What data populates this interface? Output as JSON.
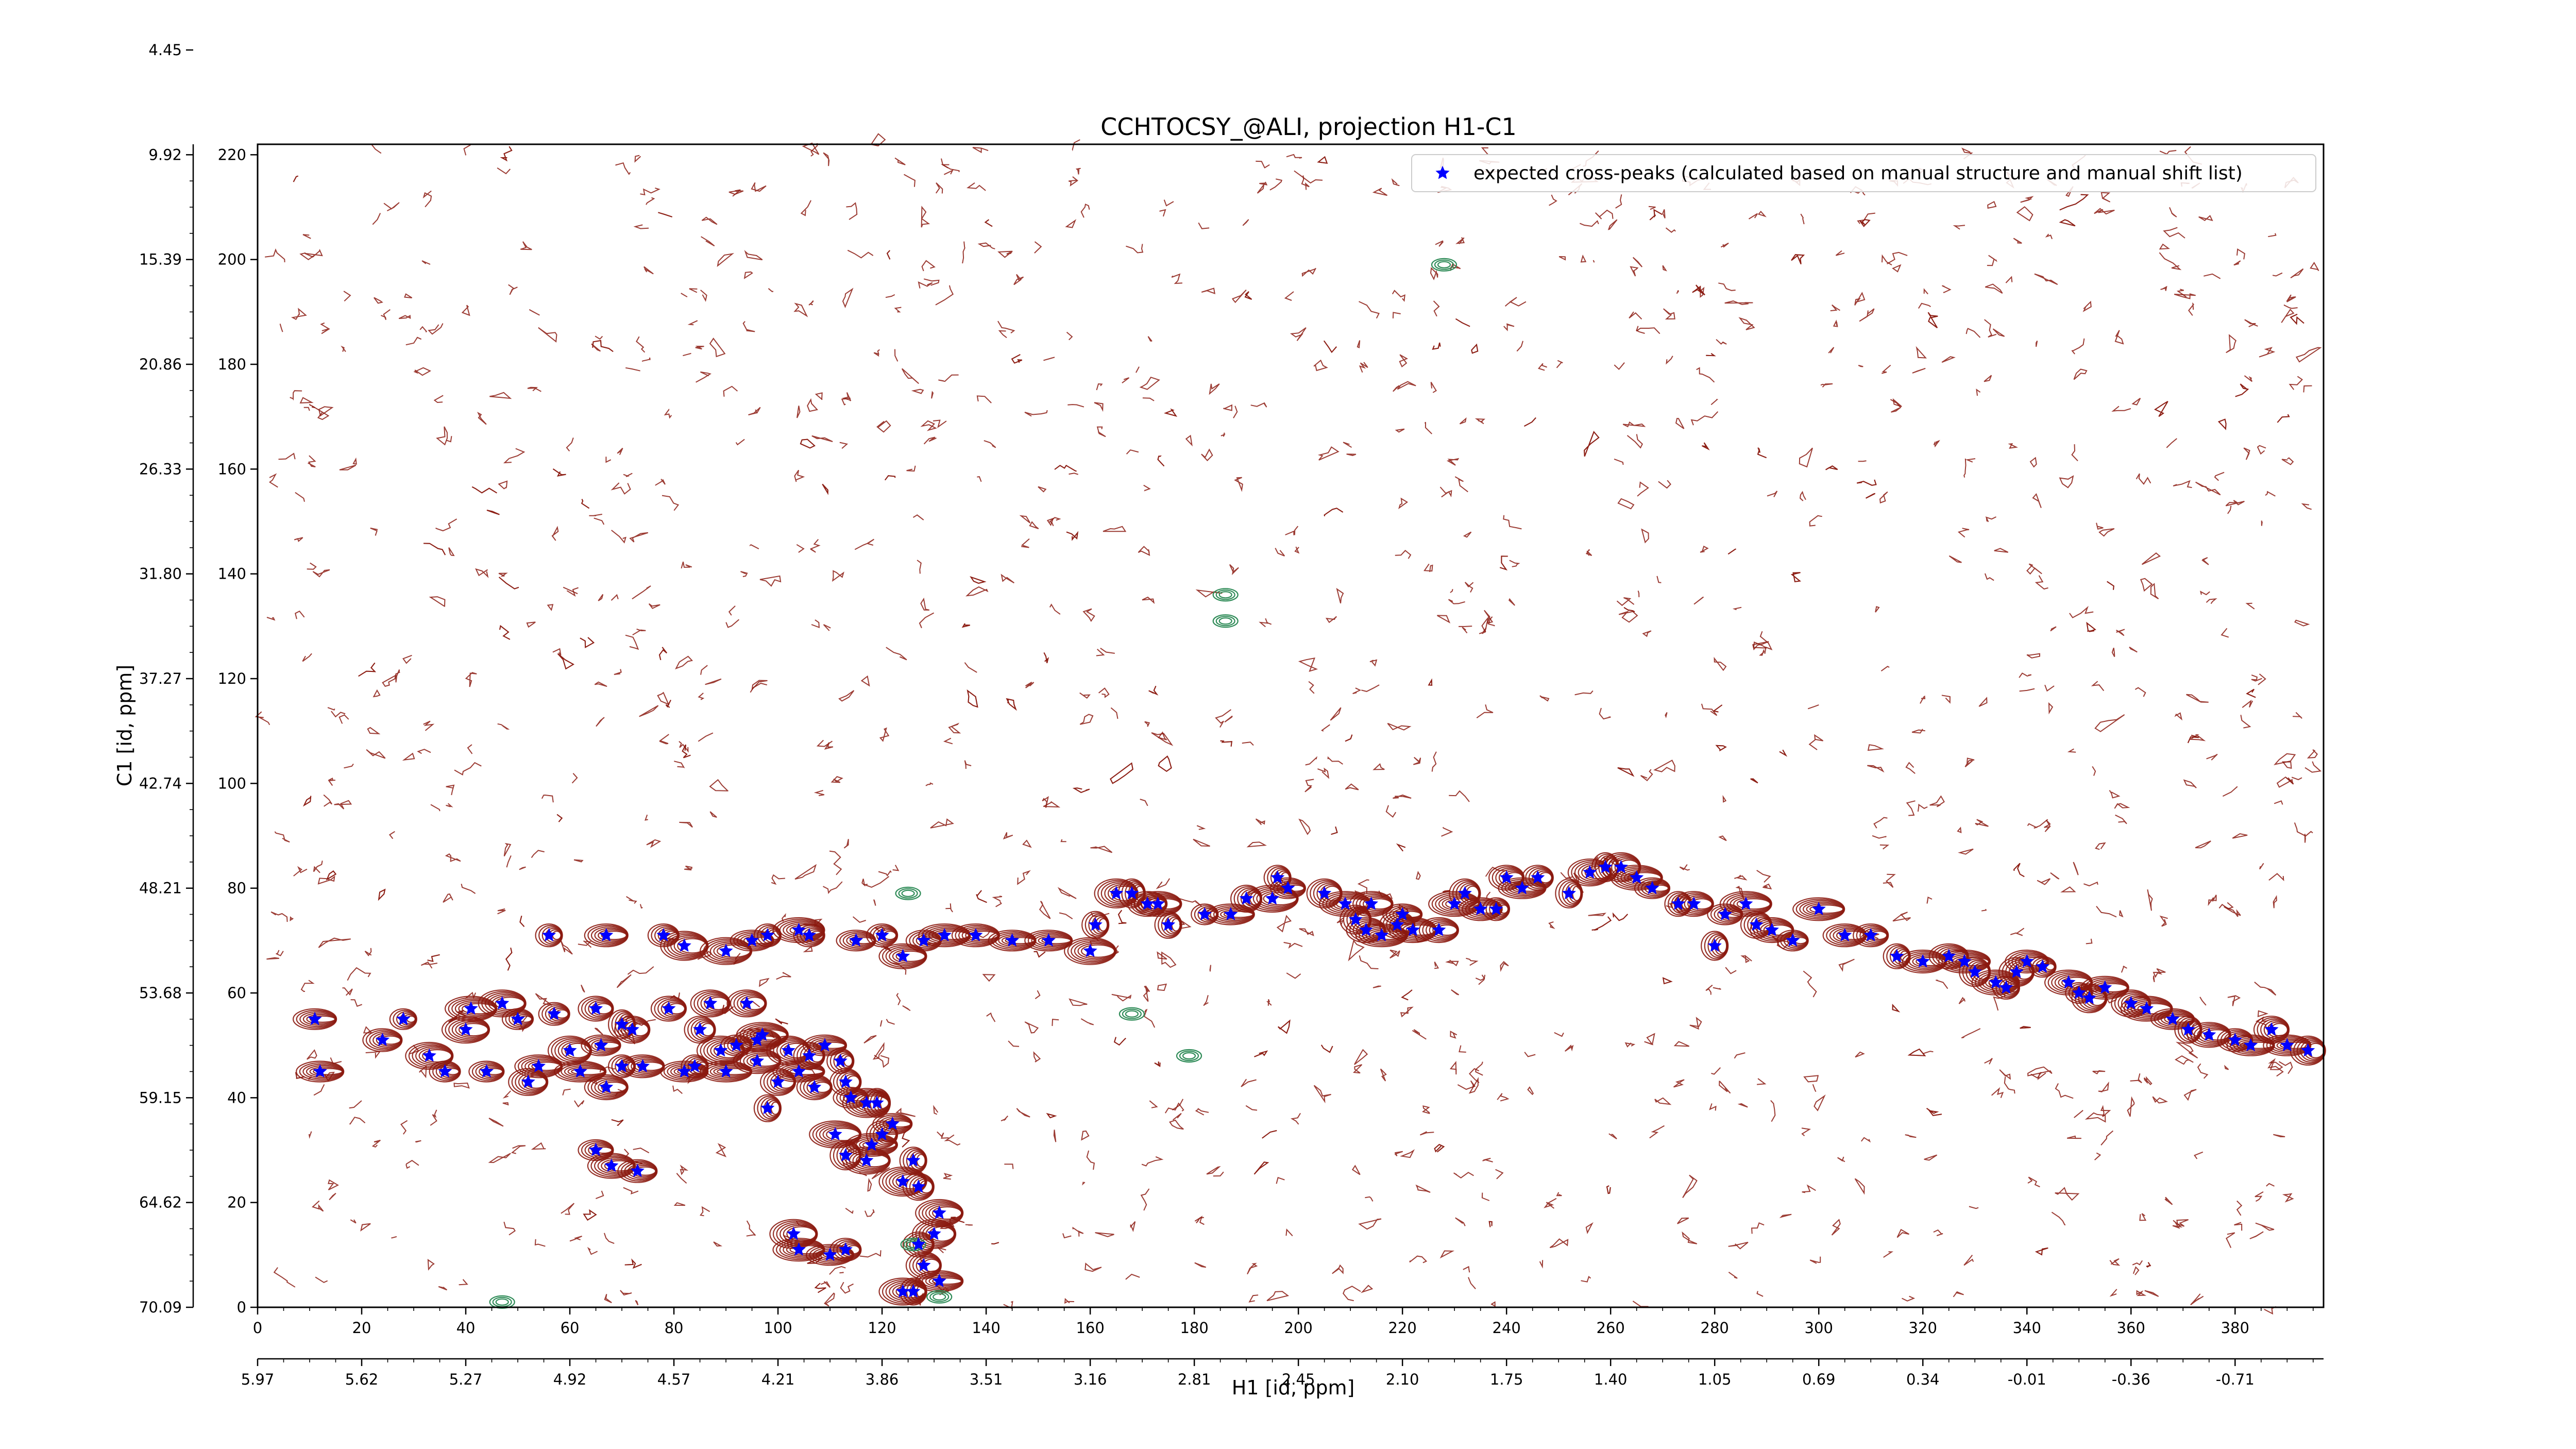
{
  "chart": {
    "title": "CCHTOCSY_@ALI, projection H1-C1",
    "xlabel": "H1 [id, ppm]",
    "ylabel": "C1 [id, ppm]",
    "legend_label": "expected cross-peaks (calculated based on manual structure and manual shift list)"
  },
  "colors": {
    "positive_contour": "#8b1a10",
    "negative_contour": "#2e8b57",
    "marker": "#0000ff"
  },
  "chart_data": {
    "type": "scatter",
    "title": "CCHTOCSY_@ALI, projection H1-C1",
    "xlabel": "H1 [id, ppm]",
    "ylabel": "C1 [id, ppm]",
    "xlim": [
      0,
      397
    ],
    "ylim": [
      0,
      222
    ],
    "x_ticks": [
      0,
      20,
      40,
      60,
      80,
      100,
      120,
      140,
      160,
      180,
      200,
      220,
      240,
      260,
      280,
      300,
      320,
      340,
      360,
      380
    ],
    "y_ticks": [
      0,
      20,
      40,
      60,
      80,
      100,
      120,
      140,
      160,
      180,
      200,
      220,
      240
    ],
    "x_ppm_ticks": [
      "5.97",
      "5.62",
      "5.27",
      "4.92",
      "4.57",
      "4.21",
      "3.86",
      "3.51",
      "3.16",
      "2.81",
      "2.45",
      "2.10",
      "1.75",
      "1.40",
      "1.05",
      "0.69",
      "0.34",
      "-0.01",
      "-0.36",
      "-0.71"
    ],
    "y_ppm_ticks": [
      "70.09",
      "64.62",
      "59.15",
      "53.68",
      "48.21",
      "42.74",
      "37.27",
      "31.80",
      "26.33",
      "20.86",
      "15.39",
      "9.92",
      "4.45"
    ],
    "legend": "top-right",
    "grid": false,
    "series": [
      {
        "name": "expected cross-peaks (calculated based on manual structure and manual shift list)",
        "marker": "star",
        "points": [
          [
            11,
            55
          ],
          [
            12,
            45
          ],
          [
            24,
            51
          ],
          [
            28,
            55
          ],
          [
            33,
            48
          ],
          [
            36,
            45
          ],
          [
            40,
            53
          ],
          [
            41,
            57
          ],
          [
            44,
            45
          ],
          [
            47,
            58
          ],
          [
            50,
            55
          ],
          [
            52,
            43
          ],
          [
            57,
            56
          ],
          [
            54,
            46
          ],
          [
            60,
            49
          ],
          [
            62,
            45
          ],
          [
            65,
            57
          ],
          [
            66,
            50
          ],
          [
            67,
            42
          ],
          [
            70,
            46
          ],
          [
            72,
            53
          ],
          [
            74,
            46
          ],
          [
            65,
            30
          ],
          [
            68,
            27
          ],
          [
            73,
            26
          ],
          [
            70,
            54
          ],
          [
            79,
            57
          ],
          [
            82,
            45
          ],
          [
            84,
            46
          ],
          [
            85,
            53
          ],
          [
            87,
            58
          ],
          [
            89,
            49
          ],
          [
            90,
            45
          ],
          [
            92,
            50
          ],
          [
            94,
            58
          ],
          [
            96,
            47
          ],
          [
            97,
            52
          ],
          [
            100,
            43
          ],
          [
            102,
            49
          ],
          [
            104,
            45
          ],
          [
            106,
            48
          ],
          [
            107,
            42
          ],
          [
            109,
            50
          ],
          [
            112,
            47
          ],
          [
            113,
            43
          ],
          [
            114,
            40
          ],
          [
            117,
            39
          ],
          [
            119,
            39
          ],
          [
            111,
            33
          ],
          [
            117,
            28
          ],
          [
            96,
            51
          ],
          [
            98,
            38
          ],
          [
            103,
            14
          ],
          [
            104,
            11
          ],
          [
            110,
            10
          ],
          [
            113,
            11
          ],
          [
            113,
            29
          ],
          [
            118,
            31
          ],
          [
            120,
            33
          ],
          [
            122,
            35
          ],
          [
            124,
            24
          ],
          [
            126,
            28
          ],
          [
            127,
            23
          ],
          [
            131,
            18
          ],
          [
            130,
            14
          ],
          [
            127,
            12
          ],
          [
            128,
            8
          ],
          [
            131,
            5
          ],
          [
            126,
            3
          ],
          [
            124,
            3
          ],
          [
            56,
            71
          ],
          [
            67,
            71
          ],
          [
            78,
            71
          ],
          [
            82,
            69
          ],
          [
            90,
            68
          ],
          [
            95,
            70
          ],
          [
            98,
            71
          ],
          [
            104,
            72
          ],
          [
            106,
            71
          ],
          [
            115,
            70
          ],
          [
            120,
            71
          ],
          [
            124,
            67
          ],
          [
            128,
            70
          ],
          [
            132,
            71
          ],
          [
            138,
            71
          ],
          [
            145,
            70
          ],
          [
            152,
            70
          ],
          [
            160,
            68
          ],
          [
            161,
            73
          ],
          [
            165,
            79
          ],
          [
            168,
            79
          ],
          [
            171,
            77
          ],
          [
            173,
            77
          ],
          [
            175,
            73
          ],
          [
            182,
            75
          ],
          [
            187,
            75
          ],
          [
            190,
            78
          ],
          [
            195,
            78
          ],
          [
            196,
            82
          ],
          [
            198,
            80
          ],
          [
            205,
            79
          ],
          [
            209,
            77
          ],
          [
            211,
            74
          ],
          [
            213,
            72
          ],
          [
            216,
            71
          ],
          [
            214,
            77
          ],
          [
            219,
            73
          ],
          [
            220,
            75
          ],
          [
            222,
            72
          ],
          [
            227,
            72
          ],
          [
            230,
            77
          ],
          [
            232,
            79
          ],
          [
            235,
            76
          ],
          [
            238,
            76
          ],
          [
            240,
            82
          ],
          [
            243,
            80
          ],
          [
            246,
            82
          ],
          [
            252,
            79
          ],
          [
            256,
            83
          ],
          [
            259,
            84
          ],
          [
            262,
            84
          ],
          [
            265,
            82
          ],
          [
            268,
            80
          ],
          [
            273,
            77
          ],
          [
            276,
            77
          ],
          [
            280,
            69
          ],
          [
            282,
            75
          ],
          [
            286,
            77
          ],
          [
            288,
            73
          ],
          [
            291,
            72
          ],
          [
            295,
            70
          ],
          [
            300,
            76
          ],
          [
            305,
            71
          ],
          [
            310,
            71
          ],
          [
            315,
            67
          ],
          [
            320,
            66
          ],
          [
            325,
            67
          ],
          [
            328,
            66
          ],
          [
            330,
            64
          ],
          [
            334,
            62
          ],
          [
            336,
            61
          ],
          [
            338,
            64
          ],
          [
            340,
            66
          ],
          [
            343,
            65
          ],
          [
            348,
            62
          ],
          [
            350,
            60
          ],
          [
            352,
            59
          ],
          [
            355,
            61
          ],
          [
            360,
            58
          ],
          [
            363,
            57
          ],
          [
            368,
            55
          ],
          [
            371,
            53
          ],
          [
            375,
            52
          ],
          [
            380,
            51
          ],
          [
            383,
            50
          ],
          [
            387,
            53
          ],
          [
            390,
            50
          ],
          [
            394,
            49
          ]
        ]
      }
    ]
  }
}
